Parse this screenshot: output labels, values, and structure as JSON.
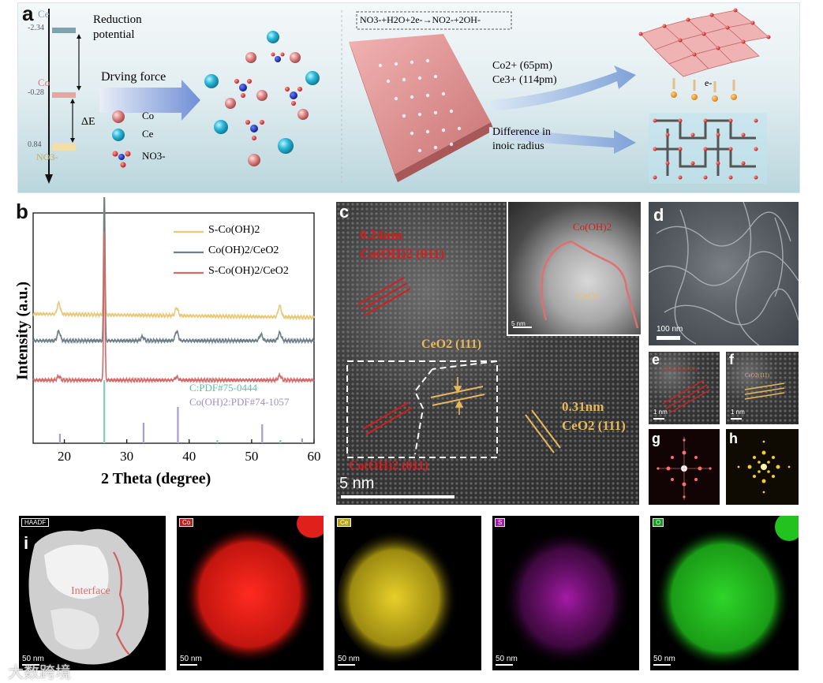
{
  "panel_a": {
    "label": "a",
    "levels": [
      {
        "name": "Ce",
        "value": "-2.34",
        "color": "#7fa3ad"
      },
      {
        "name": "Co",
        "value": "-0.28",
        "color": "#d77d7d"
      },
      {
        "name": "NO3-",
        "value": "0.84",
        "color": "#e2c27a"
      }
    ],
    "reduction_potential": "Reduction potential",
    "delta_e": "ΔE",
    "driving_force": "Drving force",
    "legend": {
      "co": "Co",
      "ce": "Ce",
      "no3": "NO3-"
    },
    "reaction": "NO3-+H2O+2e-→NO2-+2OH-",
    "ion_radius_1": "Co2+ (65pm)",
    "ion_radius_2": "Ce3+ (114pm)",
    "diff_line1": "Difference in",
    "diff_line2": "inoic radius",
    "electron": "e-"
  },
  "panel_b": {
    "label": "b",
    "chart_data": {
      "type": "line",
      "xlabel": "2 Theta (degree)",
      "ylabel": "Intensity (a.u.)",
      "xlim": [
        15,
        60
      ],
      "xticks": [
        20,
        30,
        40,
        50,
        60
      ],
      "series": [
        {
          "name": "S-Co(OH)2",
          "color": "#e8c97a",
          "peaks": [
            19.1,
            26.4,
            38.0,
            54.5
          ]
        },
        {
          "name": "Co(OH)2/CeO2",
          "color": "#6b7f88",
          "peaks": [
            19.1,
            26.4,
            32.5,
            38.0,
            51.5,
            54.5
          ]
        },
        {
          "name": "S-Co(OH)2/CeO2",
          "color": "#d46a6a",
          "peaks": [
            19.1,
            26.4,
            38.0,
            54.5
          ]
        }
      ],
      "reference_c": {
        "name": "C:PDF#75-0444",
        "color": "#7fcfb6",
        "peaks": [
          26.4,
          44.5,
          54.6
        ]
      },
      "reference_coh": {
        "name": "Co(OH)2:PDF#74-1057",
        "color": "#a99ad0",
        "peaks": [
          19.1,
          32.5,
          38.0,
          51.5,
          57.9
        ]
      }
    }
  },
  "panel_c": {
    "label": "c",
    "d1": "0.24nm",
    "p1": "Co(OH)2 (011)",
    "p2": "CeO2 (111)",
    "d3": "0.31nm",
    "p3": "CeO2 (111)",
    "p4": "Co(OH)2 (011)",
    "scale": "5 nm",
    "inset_coh": "Co(OH)2",
    "inset_ceo": "CeO2",
    "inset_scale": "5 nm"
  },
  "panel_d": {
    "label": "d",
    "scale": "100 nm"
  },
  "panel_e": {
    "label": "e",
    "tag": "Co(OH)2(011)",
    "scale": "1 nm"
  },
  "panel_f": {
    "label": "f",
    "tag": "CeO2(111)",
    "scale": "1 nm"
  },
  "panel_g": {
    "label": "g"
  },
  "panel_h": {
    "label": "h"
  },
  "panel_i": {
    "label": "i",
    "maps": [
      {
        "tag": "HAADF",
        "scale": "50 nm",
        "interface": "Interface"
      },
      {
        "tag": "Co",
        "scale": "50 nm",
        "color": "#e0201b"
      },
      {
        "tag": "Ce",
        "scale": "50 nm",
        "color": "#d7c21b"
      },
      {
        "tag": "S",
        "scale": "50 nm",
        "color": "#c21fc4"
      },
      {
        "tag": "O",
        "scale": "50 nm",
        "color": "#23c21f"
      }
    ]
  },
  "watermark": "大数跨境"
}
